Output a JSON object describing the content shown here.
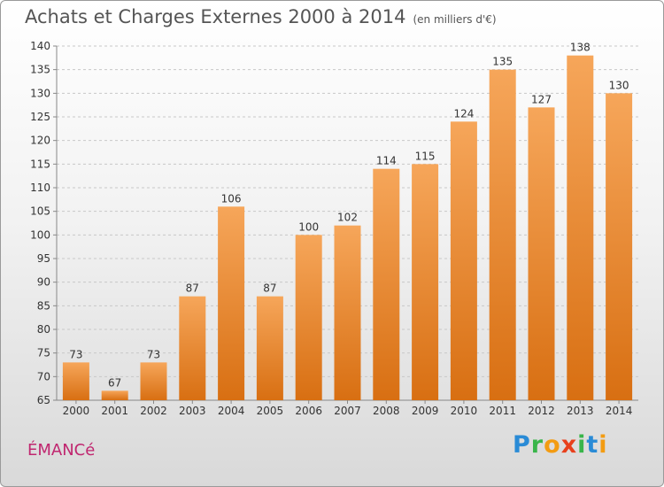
{
  "title": "Achats et Charges Externes 2000 à 2014",
  "unit": "(en milliers d'€)",
  "commune": "ÉMANCé",
  "logo": {
    "text": "Proxiti",
    "letters": [
      {
        "ch": "P",
        "color": "#2a8bd6"
      },
      {
        "ch": "r",
        "color": "#39b54a"
      },
      {
        "ch": "o",
        "color": "#f39c12"
      },
      {
        "ch": "x",
        "color": "#e8401c"
      },
      {
        "ch": "i",
        "color": "#39b54a"
      },
      {
        "ch": "t",
        "color": "#2a8bd6"
      },
      {
        "ch": "i",
        "color": "#f39c12"
      }
    ]
  },
  "colors": {
    "bar_top": "#f6a65a",
    "bar_bottom": "#d86f12",
    "grid": "#c8c8c8",
    "axis_text": "#333333"
  },
  "chart_data": {
    "type": "bar",
    "categories": [
      "2000",
      "2001",
      "2002",
      "2003",
      "2004",
      "2005",
      "2006",
      "2007",
      "2008",
      "2009",
      "2010",
      "2011",
      "2012",
      "2013",
      "2014"
    ],
    "values": [
      73,
      67,
      73,
      87,
      106,
      87,
      100,
      102,
      114,
      115,
      124,
      135,
      127,
      138,
      130
    ],
    "ylim": [
      65,
      140
    ],
    "yticks": [
      65,
      70,
      75,
      80,
      85,
      90,
      95,
      100,
      105,
      110,
      115,
      120,
      125,
      130,
      135,
      140
    ],
    "grid": true
  }
}
